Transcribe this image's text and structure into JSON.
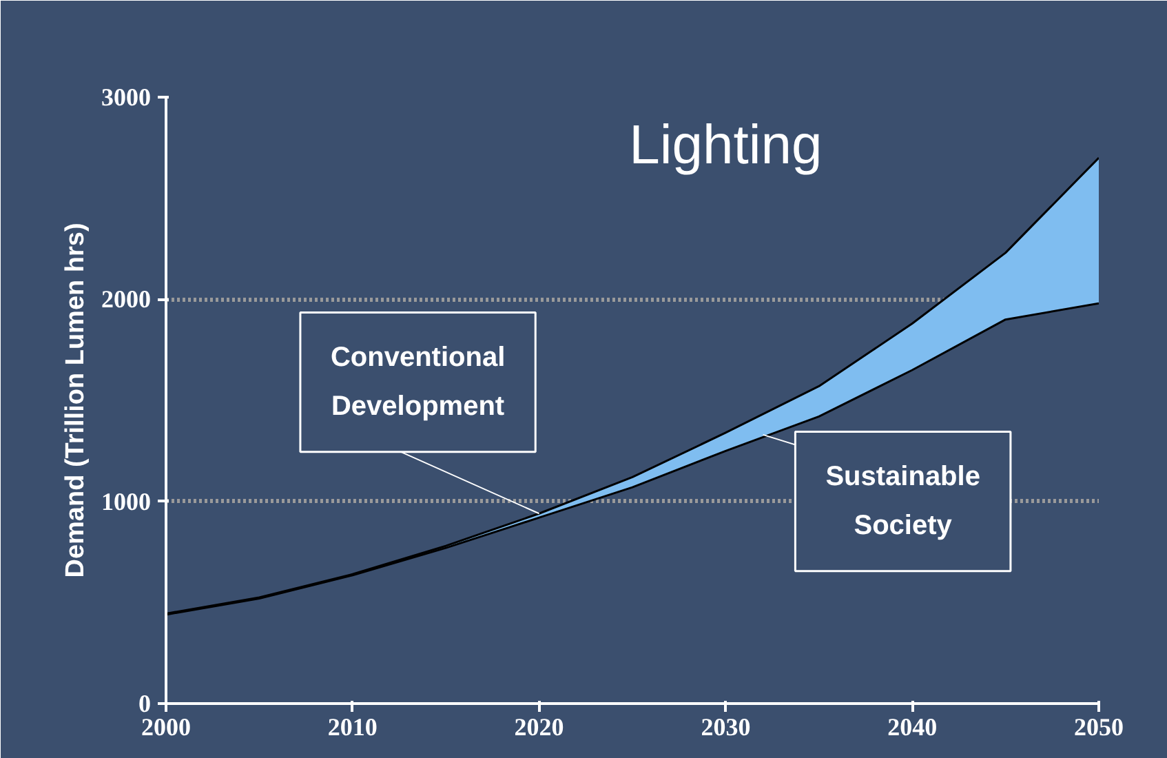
{
  "chart_data": {
    "type": "line",
    "title": "Lighting",
    "ylabel": "Demand (Trillion Lumen hrs)",
    "x": [
      2000,
      2005,
      2010,
      2015,
      2020,
      2025,
      2030,
      2035,
      2040,
      2045,
      2050
    ],
    "series": [
      {
        "color": "#000000",
        "values": [
          440,
          520,
          635,
          770,
          920,
          1070,
          1250,
          1420,
          1650,
          1900,
          1980
        ]
      },
      {
        "color": "#000000",
        "values": [
          445,
          525,
          640,
          780,
          940,
          1120,
          1340,
          1570,
          1880,
          2230,
          2700
        ],
        "lower": [
          440,
          520,
          635,
          770,
          920,
          1070,
          1250,
          1420,
          1650,
          1900,
          1980
        ],
        "upper": [
          445,
          525,
          640,
          780,
          940,
          1120,
          1340,
          1570,
          1880,
          2230,
          2700
        ]
      }
    ],
    "annotations": [
      {
        "text": "Conventional\nDevelopment",
        "x": 2020,
        "y": 940
      },
      {
        "text": "Sustainable\nSociety",
        "x": 2032,
        "y": 1330
      }
    ],
    "xlim": [
      2000,
      2050
    ],
    "xticks": [
      2000,
      2010,
      2020,
      2030,
      2040,
      2050
    ],
    "ylim": [
      0,
      3000
    ],
    "yticks": [
      0,
      1000,
      2000,
      3000
    ],
    "grid": "y",
    "marker": "none",
    "line_style": "solid"
  }
}
